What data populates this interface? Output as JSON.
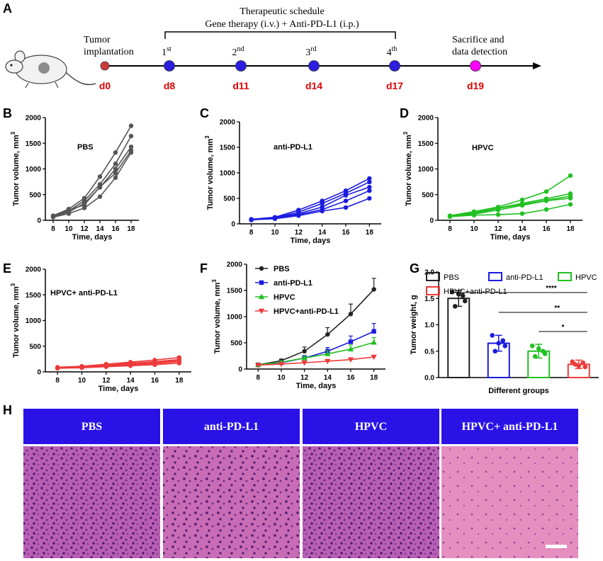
{
  "panel_letters": {
    "A": "A",
    "B": "B",
    "C": "C",
    "D": "D",
    "E": "E",
    "F": "F",
    "G": "G",
    "H": "H"
  },
  "schedule": {
    "title_line1": "Therapeutic schedule",
    "title_line2": "Gene therapy (i.v.) + Anti-PD-L1 (i.p.)",
    "tumor_line1": "Tumor",
    "tumor_line2": "implantation",
    "sacrifice_line1": "Sacrifice and",
    "sacrifice_line2": "data detection",
    "doses": [
      {
        "num": "1",
        "sup": "st"
      },
      {
        "num": "2",
        "sup": "nd"
      },
      {
        "num": "3",
        "sup": "rd"
      },
      {
        "num": "4",
        "sup": "th"
      }
    ],
    "days": [
      "d0",
      "d8",
      "d11",
      "d14",
      "d17",
      "d19"
    ],
    "colors": {
      "implant": "#cc3b3b",
      "dose": "#2b1ee0",
      "sacrifice": "#ff00ff",
      "day": "#e00000"
    }
  },
  "chart_data": [
    {
      "panel": "B",
      "type": "line",
      "title": "PBS",
      "color": "#555555",
      "xlabel": "Time, days",
      "ylabel": "Tumor volume, mm",
      "ylabel_sup": "3",
      "x": [
        8,
        10,
        12,
        14,
        16,
        18
      ],
      "xlim": [
        7,
        19
      ],
      "ylim": [
        0,
        2000
      ],
      "yticks": [
        0,
        500,
        1000,
        1500,
        2000
      ],
      "xticks": [
        8,
        10,
        12,
        14,
        16,
        18
      ],
      "series": [
        {
          "name": "mouse 1",
          "values": [
            90,
            220,
            430,
            850,
            1320,
            1840
          ]
        },
        {
          "name": "mouse 2",
          "values": [
            80,
            180,
            380,
            700,
            1100,
            1640
          ]
        },
        {
          "name": "mouse 3",
          "values": [
            70,
            160,
            330,
            640,
            1000,
            1430
          ]
        },
        {
          "name": "mouse 4",
          "values": [
            85,
            200,
            300,
            650,
            920,
            1360
          ]
        },
        {
          "name": "mouse 5",
          "values": [
            60,
            130,
            240,
            460,
            830,
            1320
          ]
        }
      ]
    },
    {
      "panel": "C",
      "type": "line",
      "title": "anti-PD-L1",
      "color": "#1a1ae0",
      "xlabel": "Time, days",
      "ylabel": "Tumor volume, mm",
      "ylabel_sup": "3",
      "x": [
        8,
        10,
        12,
        14,
        16,
        18
      ],
      "xlim": [
        7,
        19
      ],
      "ylim": [
        0,
        2000
      ],
      "yticks": [
        0,
        500,
        1000,
        1500,
        2000
      ],
      "xticks": [
        8,
        10,
        12,
        14,
        16,
        18
      ],
      "series": [
        {
          "name": "mouse 1",
          "values": [
            90,
            130,
            270,
            450,
            650,
            890
          ]
        },
        {
          "name": "mouse 2",
          "values": [
            80,
            120,
            230,
            400,
            600,
            820
          ]
        },
        {
          "name": "mouse 3",
          "values": [
            85,
            110,
            200,
            330,
            560,
            720
          ]
        },
        {
          "name": "mouse 4",
          "values": [
            75,
            120,
            180,
            280,
            450,
            650
          ]
        },
        {
          "name": "mouse 5",
          "values": [
            80,
            100,
            160,
            250,
            320,
            500
          ]
        }
      ]
    },
    {
      "panel": "D",
      "type": "line",
      "title": "HPVC",
      "color": "#22c022",
      "xlabel": "Time, days",
      "ylabel": "Tumor volume, mm",
      "ylabel_sup": "3",
      "x": [
        8,
        10,
        12,
        14,
        16,
        18
      ],
      "xlim": [
        7,
        19
      ],
      "ylim": [
        0,
        2000
      ],
      "yticks": [
        0,
        500,
        1000,
        1500,
        2000
      ],
      "xticks": [
        8,
        10,
        12,
        14,
        16,
        18
      ],
      "series": [
        {
          "name": "mouse 1",
          "values": [
            90,
            170,
            260,
            400,
            560,
            870
          ]
        },
        {
          "name": "mouse 2",
          "values": [
            80,
            150,
            240,
            330,
            420,
            520
          ]
        },
        {
          "name": "mouse 3",
          "values": [
            85,
            130,
            230,
            310,
            390,
            470
          ]
        },
        {
          "name": "mouse 4",
          "values": [
            75,
            120,
            200,
            290,
            380,
            430
          ]
        },
        {
          "name": "mouse 5",
          "values": [
            70,
            100,
            110,
            130,
            210,
            310
          ]
        }
      ]
    },
    {
      "panel": "E",
      "type": "line",
      "title": "HPVC+ anti-PD-L1",
      "color": "#ee3a3a",
      "xlabel": "Time, days",
      "ylabel": "Tumor volume, mm",
      "ylabel_sup": "3",
      "x": [
        8,
        10,
        12,
        14,
        16,
        18
      ],
      "xlim": [
        7,
        19
      ],
      "ylim": [
        0,
        2000
      ],
      "yticks": [
        0,
        500,
        1000,
        1500,
        2000
      ],
      "xticks": [
        8,
        10,
        12,
        14,
        16,
        18
      ],
      "series": [
        {
          "name": "mouse 1",
          "values": [
            90,
            110,
            150,
            190,
            230,
            280
          ]
        },
        {
          "name": "mouse 2",
          "values": [
            85,
            100,
            130,
            170,
            200,
            240
          ]
        },
        {
          "name": "mouse 3",
          "values": [
            80,
            95,
            120,
            150,
            180,
            220
          ]
        },
        {
          "name": "mouse 4",
          "values": [
            75,
            90,
            110,
            130,
            160,
            200
          ]
        },
        {
          "name": "mouse 5",
          "values": [
            70,
            80,
            100,
            120,
            140,
            170
          ]
        }
      ]
    },
    {
      "panel": "F",
      "type": "line",
      "title": "",
      "xlabel": "Time, days",
      "ylabel": "Tumor volume, mm",
      "ylabel_sup": "3",
      "x": [
        8,
        10,
        12,
        14,
        16,
        18
      ],
      "xlim": [
        7,
        19
      ],
      "ylim": [
        0,
        2000
      ],
      "yticks": [
        0,
        500,
        1000,
        1500,
        2000
      ],
      "xticks": [
        8,
        10,
        12,
        14,
        16,
        18
      ],
      "legend": "top-left",
      "series": [
        {
          "name": "PBS",
          "color": "#222222",
          "marker": "circle",
          "values": [
            80,
            160,
            340,
            660,
            1050,
            1520
          ],
          "errors": [
            10,
            30,
            80,
            130,
            190,
            210
          ]
        },
        {
          "name": "anti-PD-L1",
          "color": "#1a1ae0",
          "marker": "square",
          "values": [
            80,
            120,
            210,
            340,
            520,
            720
          ],
          "errors": [
            10,
            25,
            50,
            70,
            110,
            150
          ]
        },
        {
          "name": "HPVC",
          "color": "#22c022",
          "marker": "triangle-up",
          "values": [
            80,
            130,
            210,
            290,
            380,
            510
          ],
          "errors": [
            10,
            20,
            40,
            60,
            80,
            90
          ]
        },
        {
          "name": "HPVC+anti-PD-L1",
          "color": "#ee3a3a",
          "marker": "triangle-down",
          "values": [
            75,
            95,
            120,
            150,
            180,
            230
          ],
          "errors": [
            5,
            10,
            15,
            15,
            20,
            25
          ]
        }
      ]
    },
    {
      "panel": "G",
      "type": "bar",
      "xlabel": "Different groups",
      "ylabel": "Tumor weight, g",
      "ylim": [
        0,
        2.0
      ],
      "yticks": [
        0.0,
        0.5,
        1.0,
        1.5,
        2.0
      ],
      "categories": [
        "PBS",
        "anti-PD-L1",
        "HPVC",
        "HPVC+anti-PD-L1"
      ],
      "values": [
        1.5,
        0.65,
        0.5,
        0.25
      ],
      "errors": [
        0.15,
        0.15,
        0.13,
        0.08
      ],
      "colors": [
        "#222222",
        "#1a1ae0",
        "#22c022",
        "#ee3a3a"
      ],
      "points": [
        [
          1.62,
          1.45,
          1.35,
          1.55,
          1.58
        ],
        [
          0.8,
          0.6,
          0.5,
          0.7,
          0.65
        ],
        [
          0.6,
          0.45,
          0.4,
          0.5,
          0.55
        ],
        [
          0.3,
          0.2,
          0.25,
          0.28,
          0.22
        ]
      ],
      "significance": [
        {
          "label": "****",
          "from": 0,
          "to": 3
        },
        {
          "label": "**",
          "from": 1,
          "to": 3
        },
        {
          "label": "*",
          "from": 2,
          "to": 3
        }
      ]
    }
  ],
  "histology": {
    "header_color": "#2a12e6",
    "panels": [
      "PBS",
      "anti-PD-L1",
      "HPVC",
      "HPVC+ anti-PD-L1"
    ]
  }
}
